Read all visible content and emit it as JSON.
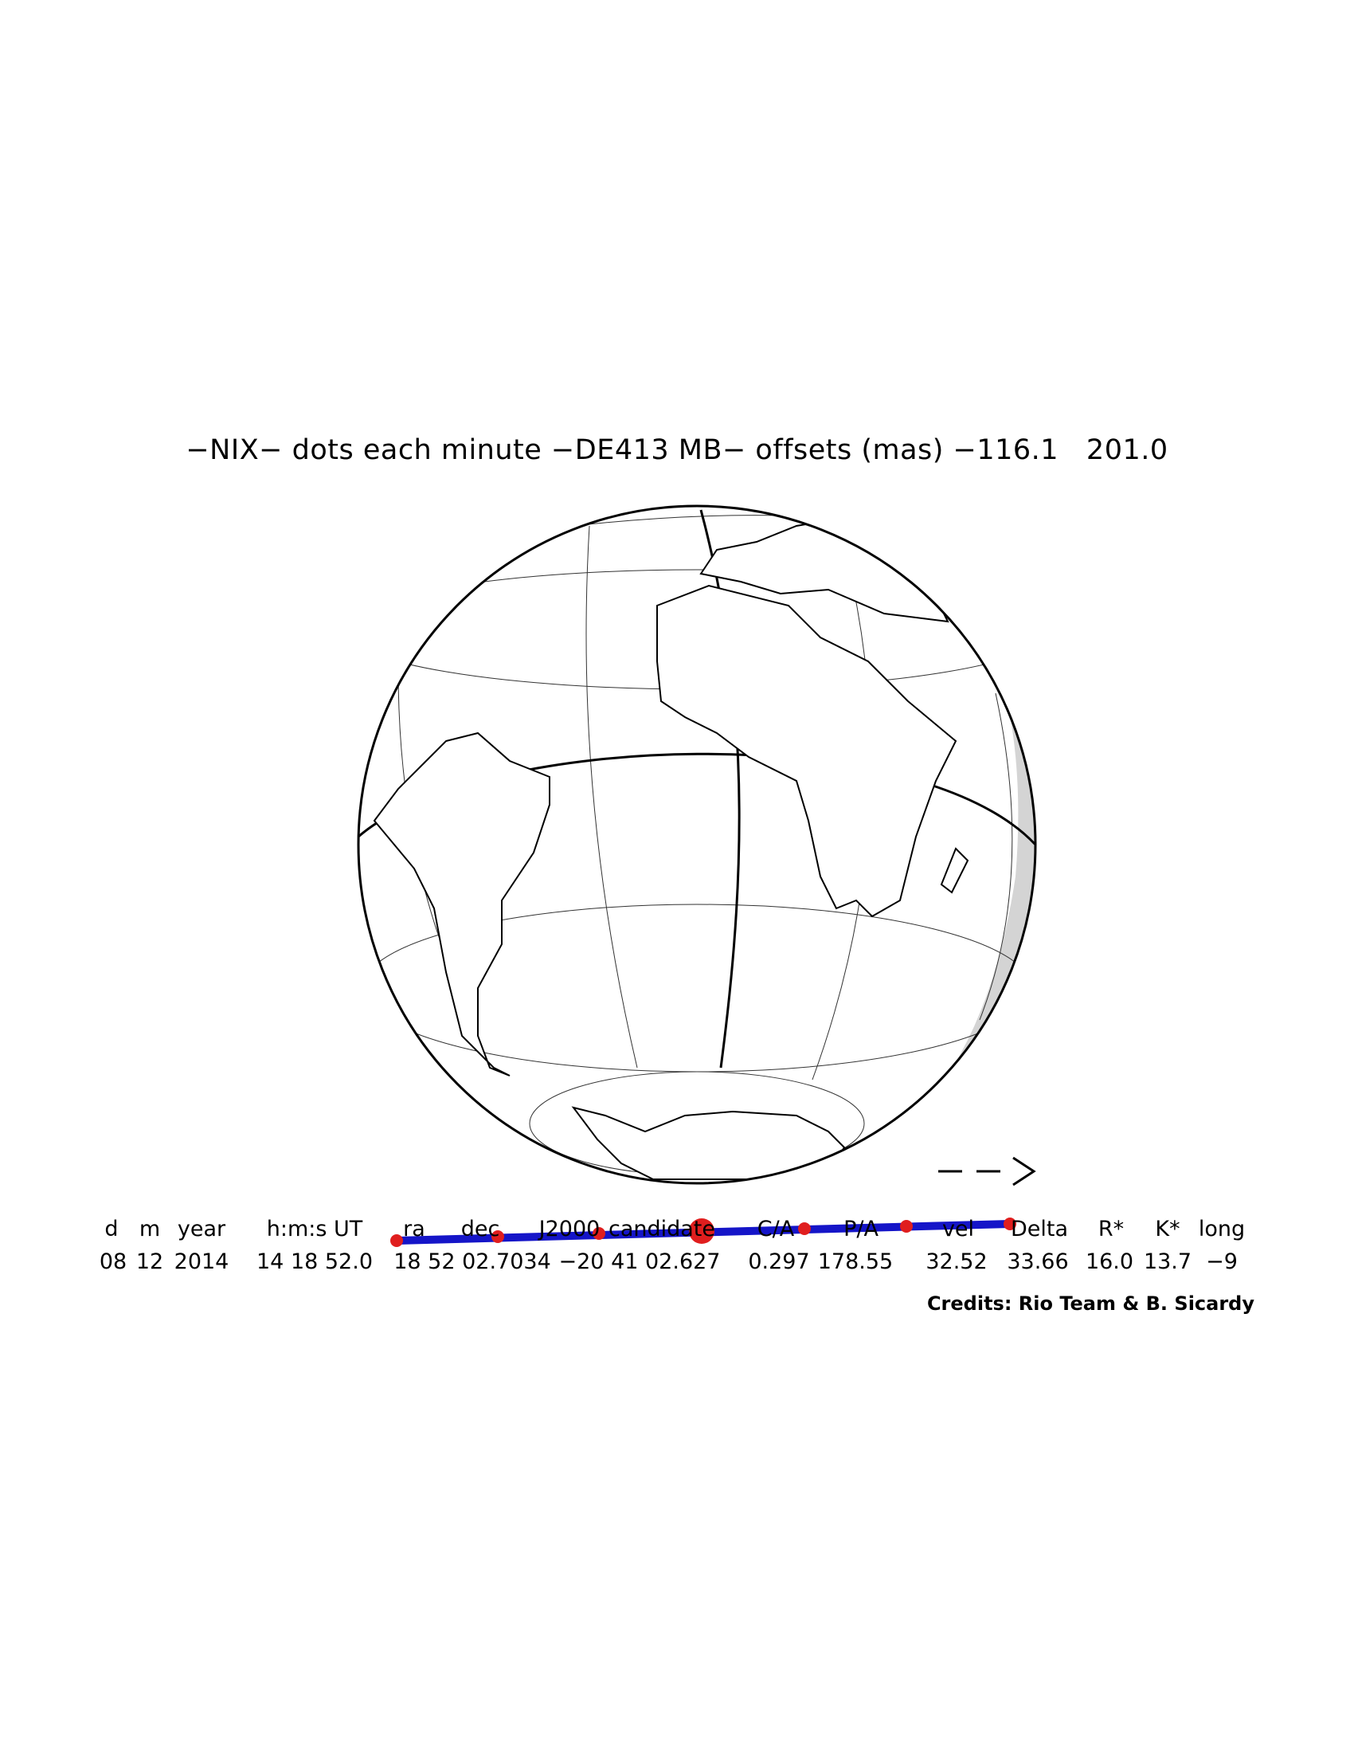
{
  "title": "−NIX− dots each minute −DE413 MB− offsets (mas) −116.1   201.0",
  "table": {
    "headers": [
      "d",
      "m",
      "year",
      "h:m:s UT",
      "ra",
      "dec",
      "J2000",
      "candidate",
      "C/A",
      "P/A",
      "vel",
      "Delta",
      "R*",
      "K*",
      "long"
    ],
    "values": [
      "08",
      "12",
      "2014",
      "14 18 52.0",
      "18 52 02.7034",
      "−20 41 02.627",
      "0.297",
      "178.55",
      "32.52",
      "33.66",
      "16.0",
      "13.7",
      "−9"
    ]
  },
  "credits": "Credits: Rio Team & B. Sicardy",
  "arrow": "−−>",
  "colors": {
    "track": "#1515c8",
    "dots": "#e01e1e",
    "night": "#d4d4d4"
  },
  "shadow_path": {
    "type": "line with dots each minute",
    "dot_count": 7,
    "central_dot_index": 3
  }
}
